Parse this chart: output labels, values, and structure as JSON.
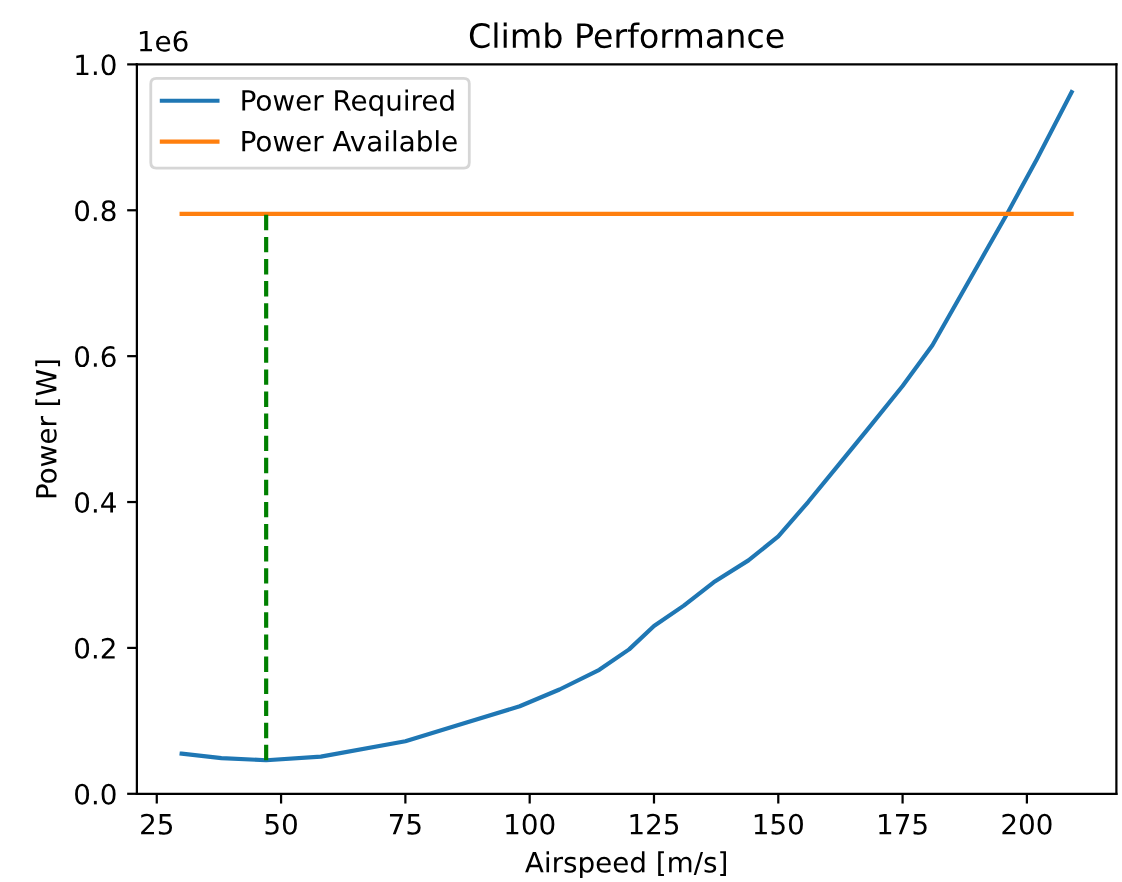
{
  "chart_data": {
    "type": "line",
    "title": "Climb Performance",
    "xlabel": "Airspeed [m/s]",
    "ylabel": "Power [W]",
    "annotations": [
      "1e6"
    ],
    "series": [
      {
        "name": "Power Required",
        "color": "#1f77b4",
        "x": [
          30,
          38,
          47,
          58,
          75,
          85,
          98,
          106,
          114,
          120,
          125,
          131,
          137,
          144,
          150,
          156,
          162,
          168,
          175,
          181,
          186,
          191,
          196,
          202,
          209
        ],
        "values": [
          0.055,
          0.049,
          0.046,
          0.051,
          0.072,
          0.093,
          0.12,
          0.143,
          0.17,
          0.198,
          0.23,
          0.258,
          0.29,
          0.32,
          0.353,
          0.4,
          0.45,
          0.5,
          0.559,
          0.615,
          0.675,
          0.735,
          0.795,
          0.87,
          0.962
        ]
      },
      {
        "name": "Power Available",
        "color": "#ff7f0e",
        "x": [
          30,
          209
        ],
        "values": [
          0.795,
          0.795
        ]
      },
      {
        "color": "#008000",
        "line_style": "dashed",
        "x": [
          47,
          47
        ],
        "values": [
          0.046,
          0.795
        ]
      }
    ],
    "xlim": [
      21,
      218
    ],
    "xticks": [
      25,
      50,
      75,
      100,
      125,
      150,
      175,
      200
    ],
    "ylim": [
      0,
      1.0
    ],
    "yticks": [
      {
        "value": 0,
        "label": "0.0"
      },
      0.2,
      0.4,
      0.6,
      0.8,
      {
        "value": 1.0,
        "label": "1.0"
      }
    ],
    "legend": "top left",
    "grid": false,
    "line_style": "solid",
    "marker": "none"
  }
}
